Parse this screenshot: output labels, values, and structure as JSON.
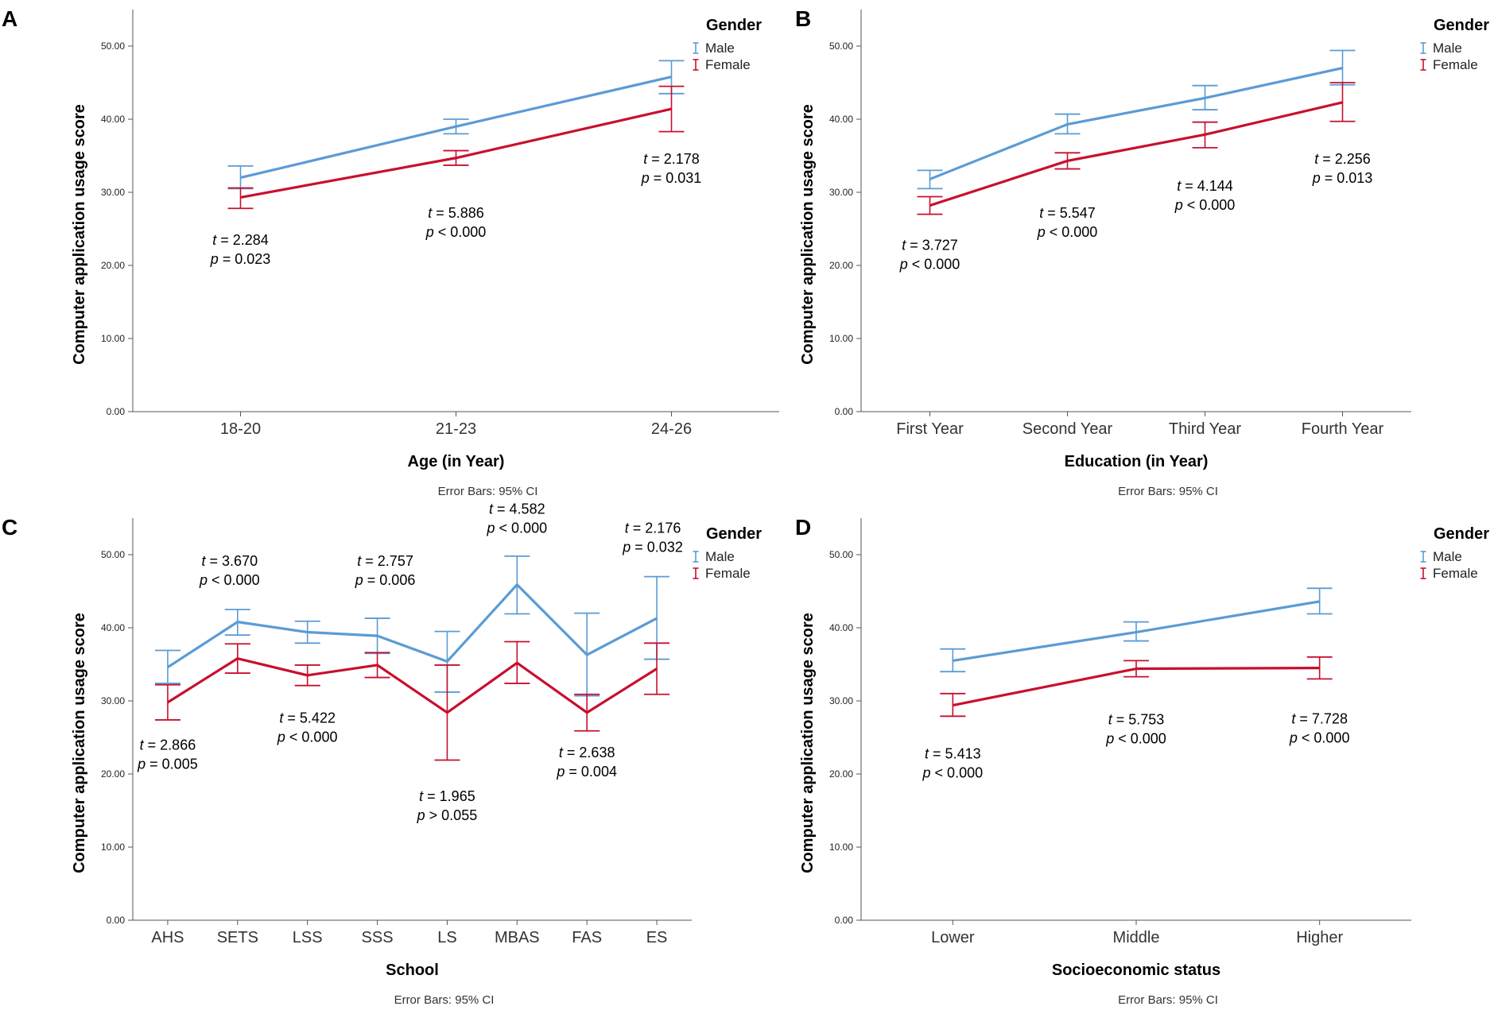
{
  "legend": {
    "title": "Gender"
  },
  "footnote": "Error Bars: 95% CI",
  "colors": {
    "male": "#5B9BD5",
    "female": "#C8102E",
    "axis": "#555555"
  },
  "chart_data": [
    {
      "id": "A",
      "type": "line",
      "panel_label": "A",
      "xlabel": "Age (in Year)",
      "ylabel": "Computer application usage score",
      "ylim": [
        0,
        55
      ],
      "yticks": [
        "0.00",
        "10.00",
        "20.00",
        "30.00",
        "40.00",
        "50.00"
      ],
      "categories": [
        "18-20",
        "21-23",
        "24-26"
      ],
      "series": [
        {
          "name": "Male",
          "values": [
            32.0,
            39.0,
            45.8
          ],
          "ci_low": [
            30.5,
            38.0,
            43.5
          ],
          "ci_high": [
            33.6,
            40.0,
            48.0
          ]
        },
        {
          "name": "Female",
          "values": [
            29.3,
            34.7,
            41.4
          ],
          "ci_low": [
            27.8,
            33.7,
            38.3
          ],
          "ci_high": [
            30.6,
            35.7,
            44.5
          ]
        }
      ],
      "annotations": [
        {
          "t": "2.284",
          "p": "0.023",
          "op": "=",
          "cat": 0,
          "y": 22.8,
          "dx": 0
        },
        {
          "t": "5.886",
          "p": "0.000",
          "op": "<",
          "cat": 1,
          "y": 26.5,
          "dx": 0
        },
        {
          "t": "2.178",
          "p": "0.031",
          "op": "=",
          "cat": 2,
          "y": 33.9,
          "dx": 0
        }
      ]
    },
    {
      "id": "B",
      "type": "line",
      "panel_label": "B",
      "xlabel": "Education (in Year)",
      "ylabel": "Computer application usage score",
      "ylim": [
        0,
        55
      ],
      "yticks": [
        "0.00",
        "10.00",
        "20.00",
        "30.00",
        "40.00",
        "50.00"
      ],
      "categories": [
        "First Year",
        "Second Year",
        "Third Year",
        "Fourth Year"
      ],
      "series": [
        {
          "name": "Male",
          "values": [
            31.8,
            39.3,
            42.9,
            47.0
          ],
          "ci_low": [
            30.5,
            38.0,
            41.3,
            44.7
          ],
          "ci_high": [
            33.0,
            40.7,
            44.6,
            49.4
          ]
        },
        {
          "name": "Female",
          "values": [
            28.2,
            34.3,
            37.9,
            42.3
          ],
          "ci_low": [
            27.0,
            33.2,
            36.1,
            39.7
          ],
          "ci_high": [
            29.4,
            35.4,
            39.6,
            45.0
          ]
        }
      ],
      "annotations": [
        {
          "t": "3.727",
          "p": "0.000",
          "op": "<",
          "cat": 0,
          "y": 22.1,
          "dx": 0
        },
        {
          "t": "5.547",
          "p": "0.000",
          "op": "<",
          "cat": 1,
          "y": 26.5,
          "dx": 0
        },
        {
          "t": "4.144",
          "p": "0.000",
          "op": "<",
          "cat": 2,
          "y": 30.2,
          "dx": 0
        },
        {
          "t": "2.256",
          "p": "0.013",
          "op": "=",
          "cat": 3,
          "y": 33.9,
          "dx": 0
        }
      ]
    },
    {
      "id": "C",
      "type": "line",
      "panel_label": "C",
      "xlabel": "School",
      "ylabel": "Computer application usage score",
      "ylim": [
        0,
        55
      ],
      "yticks": [
        "0.00",
        "10.00",
        "20.00",
        "30.00",
        "40.00",
        "50.00"
      ],
      "categories": [
        "AHS",
        "SETS",
        "LSS",
        "SSS",
        "LS",
        "MBAS",
        "FAS",
        "ES"
      ],
      "series": [
        {
          "name": "Male",
          "values": [
            34.6,
            40.8,
            39.4,
            38.9,
            35.4,
            45.9,
            36.3,
            41.3
          ],
          "ci_low": [
            32.4,
            39.0,
            37.9,
            36.5,
            31.2,
            41.9,
            30.7,
            35.7
          ],
          "ci_high": [
            36.9,
            42.5,
            40.9,
            41.3,
            39.5,
            49.8,
            42.0,
            47.0
          ]
        },
        {
          "name": "Female",
          "values": [
            29.8,
            35.8,
            33.5,
            34.9,
            28.4,
            35.2,
            28.4,
            34.4
          ],
          "ci_low": [
            27.4,
            33.8,
            32.1,
            33.2,
            21.9,
            32.4,
            25.9,
            30.9
          ],
          "ci_high": [
            32.2,
            37.8,
            34.9,
            36.6,
            34.9,
            38.1,
            30.9,
            37.9
          ]
        }
      ],
      "annotations": [
        {
          "t": "2.866",
          "p": "0.005",
          "op": "=",
          "cat": 0,
          "y": 23.3,
          "dx": 0
        },
        {
          "t": "3.670",
          "p": "0.000",
          "op": "<",
          "cat": 1,
          "y": 48.5,
          "dx": -10
        },
        {
          "t": "5.422",
          "p": "0.000",
          "op": "<",
          "cat": 2,
          "y": 27.0,
          "dx": 0
        },
        {
          "t": "2.757",
          "p": "0.006",
          "op": "=",
          "cat": 3,
          "y": 48.5,
          "dx": 10
        },
        {
          "t": "1.965",
          "p": "0.055",
          "op": ">",
          "cat": 4,
          "y": 16.3,
          "dx": 0
        },
        {
          "t": "4.582",
          "p": "0.000",
          "op": "<",
          "cat": 5,
          "y": 55.6,
          "dx": 0
        },
        {
          "t": "2.638",
          "p": "0.004",
          "op": "=",
          "cat": 6,
          "y": 22.3,
          "dx": 0
        },
        {
          "t": "2.176",
          "p": "0.032",
          "op": "=",
          "cat": 7,
          "y": 53.0,
          "dx": -5
        }
      ]
    },
    {
      "id": "D",
      "type": "line",
      "panel_label": "D",
      "xlabel": "Socioeconomic status",
      "ylabel": "Computer application usage score",
      "ylim": [
        0,
        55
      ],
      "yticks": [
        "0.00",
        "10.00",
        "20.00",
        "30.00",
        "40.00",
        "50.00"
      ],
      "categories": [
        "Lower",
        "Middle",
        "Higher"
      ],
      "series": [
        {
          "name": "Male",
          "values": [
            35.5,
            39.4,
            43.6
          ],
          "ci_low": [
            34.0,
            38.2,
            41.9
          ],
          "ci_high": [
            37.1,
            40.8,
            45.4
          ]
        },
        {
          "name": "Female",
          "values": [
            29.4,
            34.4,
            34.5
          ],
          "ci_low": [
            27.9,
            33.3,
            33.0
          ],
          "ci_high": [
            31.0,
            35.5,
            36.0
          ]
        }
      ],
      "annotations": [
        {
          "t": "5.413",
          "p": "0.000",
          "op": "<",
          "cat": 0,
          "y": 22.1,
          "dx": 0
        },
        {
          "t": "5.753",
          "p": "0.000",
          "op": "<",
          "cat": 1,
          "y": 26.8,
          "dx": 0
        },
        {
          "t": "7.728",
          "p": "0.000",
          "op": "<",
          "cat": 2,
          "y": 26.9,
          "dx": 0
        }
      ]
    }
  ]
}
